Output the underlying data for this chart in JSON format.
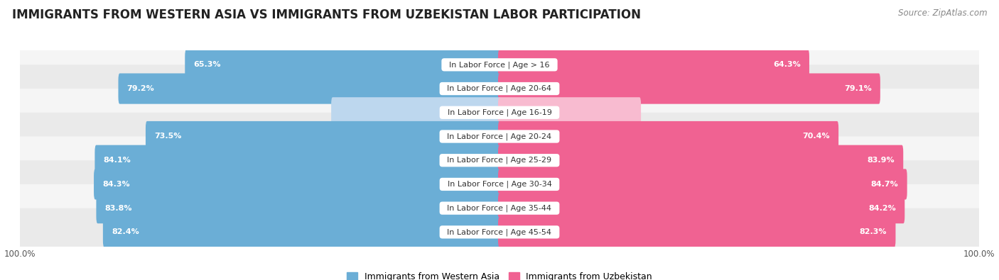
{
  "title": "IMMIGRANTS FROM WESTERN ASIA VS IMMIGRANTS FROM UZBEKISTAN LABOR PARTICIPATION",
  "source": "Source: ZipAtlas.com",
  "categories": [
    "In Labor Force | Age > 16",
    "In Labor Force | Age 20-64",
    "In Labor Force | Age 16-19",
    "In Labor Force | Age 20-24",
    "In Labor Force | Age 25-29",
    "In Labor Force | Age 30-34",
    "In Labor Force | Age 35-44",
    "In Labor Force | Age 45-54"
  ],
  "western_asia_values": [
    65.3,
    79.2,
    34.8,
    73.5,
    84.1,
    84.3,
    83.8,
    82.4
  ],
  "uzbekistan_values": [
    64.3,
    79.1,
    29.2,
    70.4,
    83.9,
    84.7,
    84.2,
    82.3
  ],
  "blue_color": "#6BAED6",
  "blue_light_color": "#BDD7EE",
  "pink_color": "#F06292",
  "pink_light_color": "#F8BBD0",
  "row_bg_odd": "#F5F5F5",
  "row_bg_even": "#EAEAEA",
  "title_fontsize": 12,
  "label_fontsize": 8,
  "value_fontsize": 8,
  "legend_fontsize": 9,
  "axis_label": "100.0%",
  "max_value": 100.0,
  "strong_threshold": 50.0
}
